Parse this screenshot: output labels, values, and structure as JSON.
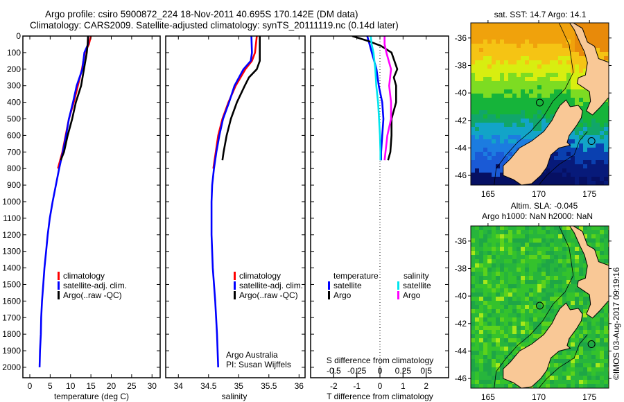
{
  "header": {
    "line1": "Argo profile: csiro 5900872_224 18-Nov-2011 40.695S 170.142E (DM data)",
    "line2": "Climatology: CARS2009. Satellite-adjusted climatology: synTS_20111119.nc (0.14d later)"
  },
  "colors": {
    "climatology": "#ff0000",
    "satellite": "#0000ff",
    "argo": "#000000",
    "sal_satellite": "#00e5ee",
    "sal_argo": "#ff00ff",
    "land": "#f9c896"
  },
  "credit": "©IMOS 03-Aug-2017 09:19:16",
  "chart_data": [
    {
      "type": "line",
      "id": "temperature",
      "xlabel": "temperature (deg C)",
      "ylabel": "",
      "xlim": [
        -1.7,
        32
      ],
      "ylim": [
        2063,
        0
      ],
      "xticks": [
        0,
        5,
        10,
        15,
        20,
        25,
        30
      ],
      "yticks": [
        0,
        100,
        200,
        300,
        400,
        500,
        600,
        700,
        800,
        900,
        1000,
        1100,
        1200,
        1300,
        1400,
        1500,
        1600,
        1700,
        1800,
        1900,
        2000
      ],
      "legend": {
        "position": "center-left",
        "entries": [
          "climatology",
          "satellite-adj. clim.",
          "Argo(..raw -QC)"
        ]
      },
      "series": [
        {
          "name": "climatology",
          "color_key": "climatology",
          "depth": [
            0,
            50,
            100,
            200,
            300,
            400,
            500,
            600,
            700,
            800
          ],
          "values": [
            15.0,
            14.5,
            13.5,
            12.8,
            11.8,
            10.8,
            9.6,
            8.8,
            8.0,
            6.9
          ]
        },
        {
          "name": "satellite-adj. clim.",
          "color_key": "satellite",
          "depth": [
            0,
            50,
            100,
            200,
            300,
            400,
            500,
            600,
            700,
            800,
            900,
            1000,
            1100,
            1200,
            1300,
            1400,
            1500,
            1600,
            1700,
            1800,
            1900,
            2000
          ],
          "values": [
            14.3,
            14.3,
            13.4,
            12.9,
            11.5,
            10.6,
            9.6,
            8.9,
            8.1,
            7.2,
            6.4,
            5.6,
            4.9,
            4.4,
            4.0,
            3.6,
            3.3,
            3.0,
            2.8,
            2.7,
            2.5,
            2.4
          ]
        },
        {
          "name": "Argo(..raw -QC)",
          "color_key": "argo",
          "depth": [
            0,
            50,
            100,
            200,
            300,
            400,
            500,
            600,
            700,
            750
          ],
          "values": [
            14.3,
            14.2,
            14.0,
            13.3,
            12.6,
            11.3,
            10.4,
            9.3,
            8.4,
            7.6
          ]
        }
      ]
    },
    {
      "type": "line",
      "id": "salinity",
      "xlabel": "salinity",
      "xlim": [
        33.79,
        36.1
      ],
      "ylim": [
        2063,
        0
      ],
      "xticks": [
        34,
        34.5,
        35,
        35.5,
        36
      ],
      "legend": {
        "position": "center-right",
        "entries": [
          "climatology",
          "satellite-adj. clim.",
          "Argo(..raw -QC)"
        ]
      },
      "annotation": [
        "Argo Australia",
        "PI: Susan Wijffels"
      ],
      "series": [
        {
          "name": "climatology",
          "color_key": "climatology",
          "depth": [
            0,
            100,
            150,
            200,
            300,
            400,
            500,
            600,
            700,
            800
          ],
          "values": [
            35.3,
            35.27,
            35.22,
            35.11,
            34.95,
            34.83,
            34.73,
            34.66,
            34.62,
            34.58
          ]
        },
        {
          "name": "satellite-adj. clim.",
          "color_key": "satellite",
          "depth": [
            0,
            100,
            150,
            200,
            300,
            400,
            500,
            600,
            700,
            800,
            900,
            1000,
            1200,
            1400,
            1600,
            1800,
            2000
          ],
          "values": [
            35.21,
            35.22,
            35.2,
            35.08,
            34.93,
            34.84,
            34.74,
            34.68,
            34.63,
            34.59,
            34.56,
            34.55,
            34.55,
            34.57,
            34.61,
            34.64,
            34.66
          ]
        },
        {
          "name": "Argo(..raw -QC)",
          "color_key": "argo",
          "depth": [
            0,
            150,
            200,
            250,
            300,
            400,
            500,
            600,
            700,
            750
          ],
          "values": [
            35.35,
            35.35,
            35.3,
            35.17,
            35.1,
            34.97,
            34.87,
            34.8,
            34.75,
            34.73
          ]
        }
      ]
    },
    {
      "type": "line",
      "id": "differences",
      "xlabel": "T difference from climatology",
      "xlabel2": "S difference from climatology",
      "xlim": [
        -3,
        2.97
      ],
      "ylim": [
        2063,
        0
      ],
      "xticks": [
        -2,
        -1,
        0,
        1,
        2
      ],
      "xticks2": [
        -0.5,
        -0.25,
        0,
        0.25,
        0.5
      ],
      "s_to_t_scale": 4,
      "zero_line": "dotted",
      "legend": {
        "position": "center",
        "groups": [
          {
            "title": "temperature",
            "entries": [
              "satellite",
              "Argo"
            ]
          },
          {
            "title": "salinity",
            "entries": [
              "satellite",
              "Argo"
            ]
          }
        ]
      },
      "series": [
        {
          "name": "temperature satellite",
          "color_key": "satellite",
          "scale": "T",
          "depth": [
            0,
            50,
            100,
            200,
            300,
            400,
            500,
            600,
            700,
            750
          ],
          "values": [
            -0.55,
            -0.45,
            -0.35,
            -0.15,
            -0.05,
            0.1,
            0.15,
            0.1,
            0.05,
            0.05
          ]
        },
        {
          "name": "temperature Argo",
          "color_key": "argo",
          "scale": "T",
          "depth": [
            0,
            30,
            60,
            100,
            200,
            250,
            300,
            400,
            500,
            600,
            700,
            750
          ],
          "values": [
            -1.2,
            -0.5,
            0.05,
            0.5,
            0.75,
            0.6,
            0.7,
            0.7,
            0.5,
            0.5,
            0.45,
            0.35
          ]
        },
        {
          "name": "salinity satellite",
          "color_key": "sal_satellite",
          "scale": "S",
          "depth": [
            0,
            50,
            100,
            200,
            300,
            400,
            500,
            600,
            700,
            750
          ],
          "values": [
            -0.1,
            -0.09,
            -0.07,
            -0.05,
            -0.04,
            -0.02,
            -0.01,
            0,
            0.005,
            0.005
          ]
        },
        {
          "name": "salinity Argo",
          "color_key": "sal_argo",
          "scale": "S",
          "depth": [
            0,
            50,
            100,
            200,
            300,
            400,
            500,
            600,
            700,
            750
          ],
          "values": [
            0.05,
            0.05,
            0.07,
            0.12,
            0.1,
            0.12,
            0.12,
            0.08,
            0.06,
            0.05
          ]
        }
      ]
    },
    {
      "type": "heatmap",
      "id": "sst-map",
      "title": "sat. SST: 14.7 Argo: 14.1",
      "xlim": [
        163.3,
        176.9
      ],
      "ylim": [
        -46.7,
        -34.9
      ],
      "xticks": [
        165,
        170,
        175
      ],
      "yticks": [
        -36,
        -38,
        -40,
        -42,
        -44,
        -46
      ],
      "markers": [
        {
          "lon": 170.1,
          "lat": -40.7
        },
        {
          "lon": 175.2,
          "lat": -43.5
        }
      ],
      "colorscale": "warm-north cold-south SST"
    },
    {
      "type": "heatmap",
      "id": "sla-map",
      "title": "Altim. SLA: -0.045",
      "subtitle": "Argo h1000: NaN h2000: NaN",
      "xlim": [
        163.3,
        176.9
      ],
      "ylim": [
        -46.7,
        -34.9
      ],
      "xticks": [
        165,
        170,
        175
      ],
      "yticks": [
        -36,
        -38,
        -40,
        -42,
        -44,
        -46
      ],
      "markers": [
        {
          "lon": 170.1,
          "lat": -40.7
        },
        {
          "lon": 175.2,
          "lat": -43.5
        }
      ],
      "colorscale": "green SLA"
    }
  ]
}
